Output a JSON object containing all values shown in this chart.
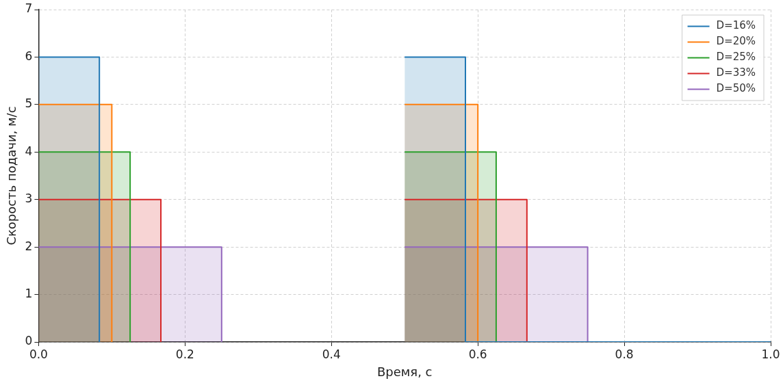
{
  "chart_data": {
    "type": "step",
    "xlabel": "Время, с",
    "ylabel": "Скорость подачи, м/с",
    "xlim": [
      0,
      1
    ],
    "xticks": [
      {
        "value": 0,
        "label": "0.0"
      },
      {
        "value": 0.2,
        "label": "0.2"
      },
      {
        "value": 0.4,
        "label": "0.4"
      },
      {
        "value": 0.6,
        "label": "0.6"
      },
      {
        "value": 0.8,
        "label": "0.8"
      },
      {
        "value": 1,
        "label": "1.0"
      }
    ],
    "ylim": [
      0,
      7
    ],
    "yticks": [
      0,
      1,
      2,
      3,
      4,
      5,
      6,
      7
    ],
    "grid": true,
    "legend": "top right",
    "line_style": "solid",
    "marker": "none",
    "series": [
      {
        "name": "D=16%",
        "color": "#1f77b4",
        "x": [
          0,
          0.083,
          0.5,
          0.583,
          1
        ],
        "values": [
          6,
          0,
          6,
          0,
          0
        ]
      },
      {
        "name": "D=20%",
        "color": "#ff7f0e",
        "x": [
          0,
          0.1,
          0.5,
          0.6,
          1
        ],
        "values": [
          5,
          0,
          5,
          0,
          0
        ]
      },
      {
        "name": "D=25%",
        "color": "#2ca02c",
        "x": [
          0,
          0.125,
          0.5,
          0.625,
          1
        ],
        "values": [
          4,
          0,
          4,
          0,
          0
        ]
      },
      {
        "name": "D=33%",
        "color": "#d62728",
        "x": [
          0,
          0.167,
          0.5,
          0.667,
          1
        ],
        "values": [
          3,
          0,
          3,
          0,
          0
        ]
      },
      {
        "name": "D=50%",
        "color": "#9467bd",
        "x": [
          0,
          0.25,
          0.5,
          0.75,
          1
        ],
        "values": [
          2,
          0,
          2,
          0,
          0
        ]
      }
    ]
  }
}
